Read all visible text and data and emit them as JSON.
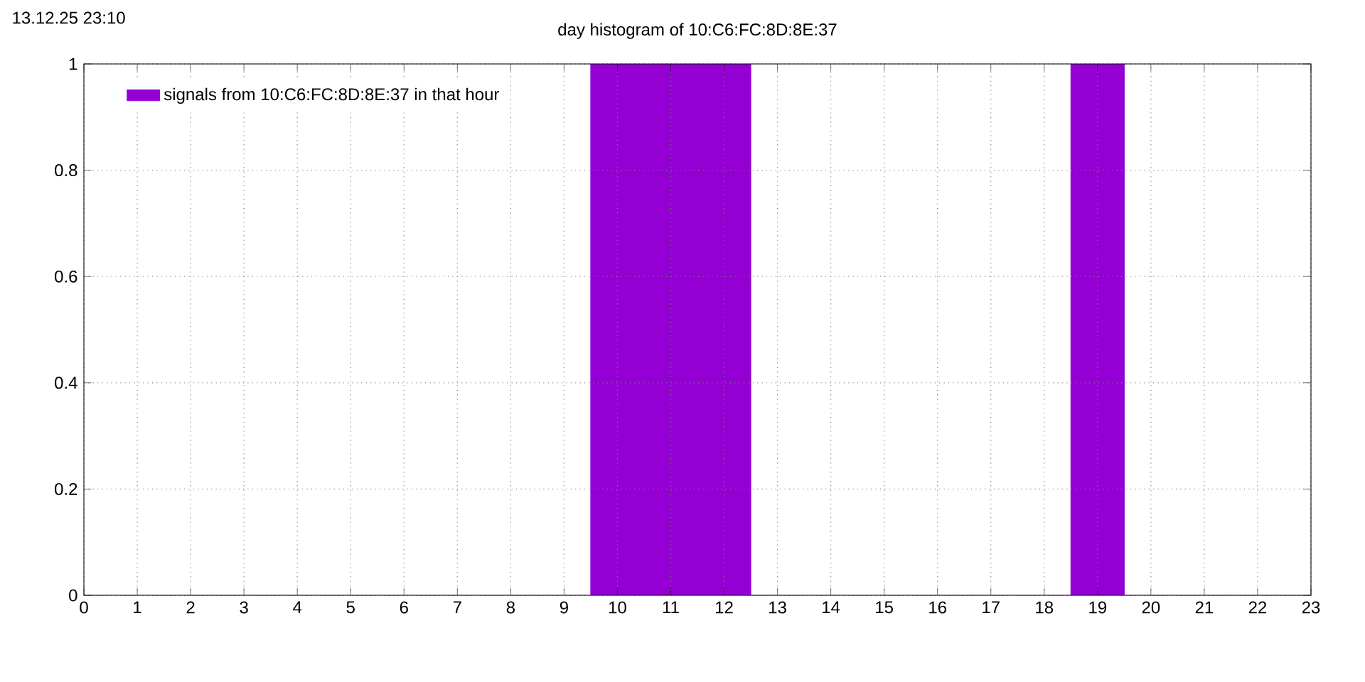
{
  "chart_data": {
    "type": "bar",
    "title": "day histogram of 10:C6:FC:8D:8E:37",
    "annotations": [
      "13.12.25 23:10"
    ],
    "x": [
      0,
      1,
      2,
      3,
      4,
      5,
      6,
      7,
      8,
      9,
      10,
      11,
      12,
      13,
      14,
      15,
      16,
      17,
      18,
      19,
      20,
      21,
      22,
      23
    ],
    "series": [
      {
        "name": "signals from 10:C6:FC:8D:8E:37 in that hour",
        "color": "#9400d3",
        "values": [
          0,
          0,
          0,
          0,
          0,
          0,
          0,
          0,
          0,
          0,
          1,
          1,
          1,
          0,
          0,
          0,
          0,
          0,
          0,
          1,
          0,
          0,
          0,
          0
        ]
      }
    ],
    "xlim": [
      0,
      23
    ],
    "xticks": [
      0,
      1,
      2,
      3,
      4,
      5,
      6,
      7,
      8,
      9,
      10,
      11,
      12,
      13,
      14,
      15,
      16,
      17,
      18,
      19,
      20,
      21,
      22,
      23
    ],
    "ylim": [
      0,
      1
    ],
    "yticks": [
      0,
      0.2,
      0.4,
      0.6,
      0.8,
      1
    ],
    "grid": true,
    "legend": "top left"
  }
}
